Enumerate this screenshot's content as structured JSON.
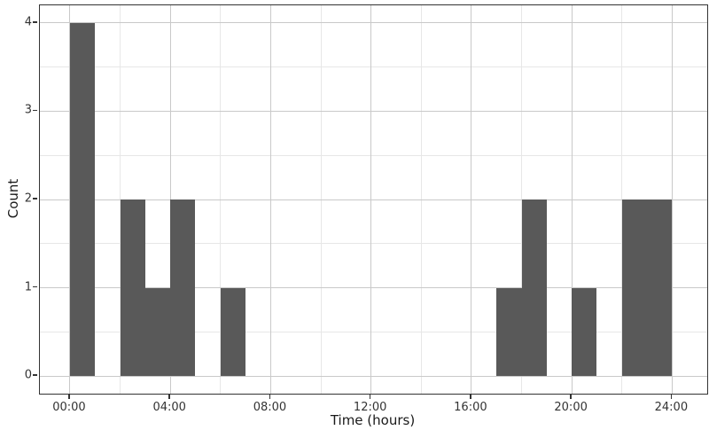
{
  "chart_data": {
    "type": "bar",
    "subtype": "histogram",
    "title": "",
    "xlabel": "Time (hours)",
    "ylabel": "Count",
    "x_tick_hours": [
      0,
      4,
      8,
      12,
      16,
      20,
      24
    ],
    "x_tick_labels": [
      "00:00",
      "04:00",
      "08:00",
      "12:00",
      "16:00",
      "20:00",
      "24:00"
    ],
    "x_minor_hours": [
      2,
      6,
      10,
      14,
      18,
      22
    ],
    "y_ticks": [
      0,
      1,
      2,
      3,
      4
    ],
    "y_tick_labels": [
      "0",
      "1",
      "2",
      "3",
      "4"
    ],
    "y_minor": [
      0.5,
      1.5,
      2.5,
      3.5
    ],
    "xlim": [
      -1.2,
      25.4
    ],
    "ylim": [
      -0.2,
      4.2
    ],
    "bin_width_hours": 1,
    "bins": [
      {
        "start_hour": 0,
        "count": 4
      },
      {
        "start_hour": 2,
        "count": 2
      },
      {
        "start_hour": 3,
        "count": 1
      },
      {
        "start_hour": 4,
        "count": 2
      },
      {
        "start_hour": 6,
        "count": 1
      },
      {
        "start_hour": 17,
        "count": 1
      },
      {
        "start_hour": 18,
        "count": 2
      },
      {
        "start_hour": 20,
        "count": 1
      },
      {
        "start_hour": 22,
        "count": 2
      },
      {
        "start_hour": 23,
        "count": 2
      }
    ],
    "grid": "major-and-minor",
    "legend": "none",
    "colors": {
      "bar_fill": "#595959",
      "panel_border": "#333333",
      "grid_major": "#c9c9c9",
      "grid_minor": "#e7e7e7",
      "tick_mark": "#333333",
      "tick_label": "#333333",
      "axis_title": "#1a1a1a",
      "background": "#ffffff"
    }
  }
}
